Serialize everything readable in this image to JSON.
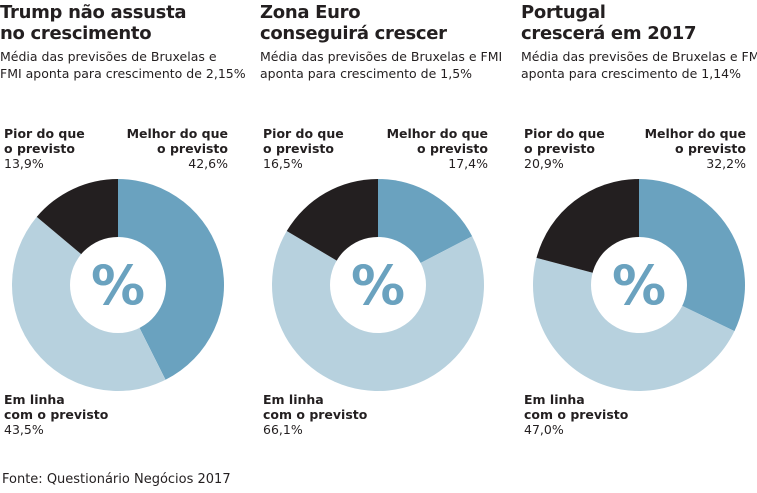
{
  "source": "Fonte: Questionário Negócios 2017",
  "center_symbol": "%",
  "colors": {
    "worse": "#231f20",
    "better": "#6aa2bf",
    "inline": "#b7d1de",
    "center": "#ffffff"
  },
  "chart_data": [
    {
      "type": "pie",
      "title": "Trump não assusta\nno crescimento",
      "subtitle": "Média das previsões de Bruxelas e\nFMI aponta para crescimento de 2,15%",
      "categories": [
        "Pior do que\no previsto",
        "Melhor do que\no previsto",
        "Em linha\ncom o previsto"
      ],
      "values": [
        13.9,
        42.6,
        43.5
      ],
      "value_labels": [
        "13,9%",
        "42,6%",
        "43,5%"
      ]
    },
    {
      "type": "pie",
      "title": "Zona Euro\nconseguirá crescer",
      "subtitle": "Média das previsões de Bruxelas e FMI\naponta para crescimento de 1,5%",
      "categories": [
        "Pior do que\no previsto",
        "Melhor do que\no previsto",
        "Em linha\ncom o previsto"
      ],
      "values": [
        16.5,
        17.4,
        66.1
      ],
      "value_labels": [
        "16,5%",
        "17,4%",
        "66,1%"
      ]
    },
    {
      "type": "pie",
      "title": "Portugal\ncrescerá em 2017",
      "subtitle": "Média das previsões de Bruxelas e FMI\naponta para crescimento de 1,14%",
      "categories": [
        "Pior do que\no previsto",
        "Melhor do que\no previsto",
        "Em linha\ncom o previsto"
      ],
      "values": [
        20.9,
        32.2,
        47.0
      ],
      "value_labels": [
        "20,9%",
        "32,2%",
        "47,0%"
      ]
    }
  ]
}
